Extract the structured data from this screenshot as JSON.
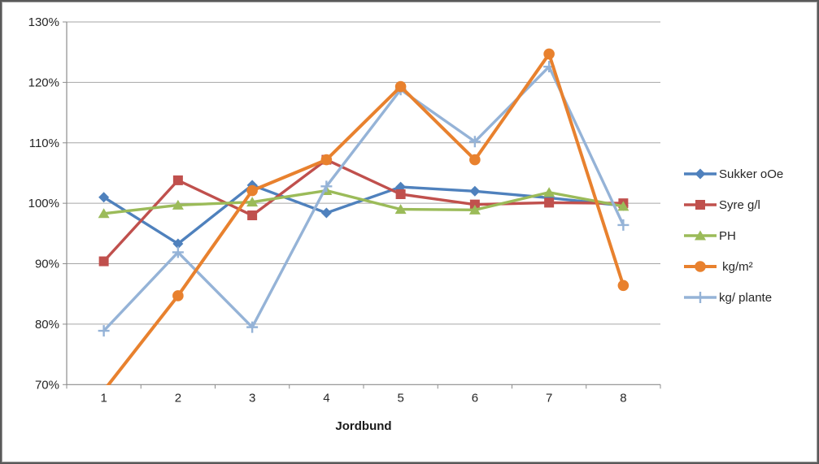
{
  "chart_data": {
    "type": "line",
    "title": "",
    "xlabel": "Jordbund",
    "ylabel": "",
    "categories": [
      "1",
      "2",
      "3",
      "4",
      "5",
      "6",
      "7",
      "8"
    ],
    "ylim": [
      70,
      130
    ],
    "ytick_interval": 10,
    "ytick_labels": [
      "70%",
      "80%",
      "90%",
      "100%",
      "110%",
      "120%",
      "130%"
    ],
    "grid": true,
    "legend_position": "right",
    "series": [
      {
        "name": "Sukker oOe",
        "marker": "diamond",
        "color": "#4F81BD",
        "values": [
          101,
          93.3,
          103,
          98.4,
          102.7,
          102,
          100.9,
          99.6
        ]
      },
      {
        "name": "Syre g/l",
        "marker": "square",
        "color": "#C0504D",
        "values": [
          90.4,
          103.8,
          98,
          107.2,
          101.5,
          99.8,
          100.1,
          100
        ]
      },
      {
        "name": "PH",
        "marker": "triangle",
        "color": "#9BBB59",
        "values": [
          98.3,
          99.7,
          100.2,
          102.1,
          99,
          98.9,
          101.8,
          99.5
        ]
      },
      {
        "name": " kg/m²",
        "marker": "circle",
        "color": "#E8812E",
        "values": [
          69,
          84.7,
          102.1,
          107.2,
          119.3,
          107.2,
          124.7,
          86.4
        ]
      },
      {
        "name": "kg/ plante",
        "marker": "plus",
        "color": "#95B3D7",
        "values": [
          78.9,
          91.9,
          79.5,
          102.8,
          118.8,
          110.2,
          122.6,
          96.4
        ]
      }
    ]
  },
  "colors": {
    "background": "#FFFFFF",
    "border": "#595959",
    "grid": "#A6A6A6",
    "axis": "#8C8C8C",
    "tick_text": "#262626"
  }
}
